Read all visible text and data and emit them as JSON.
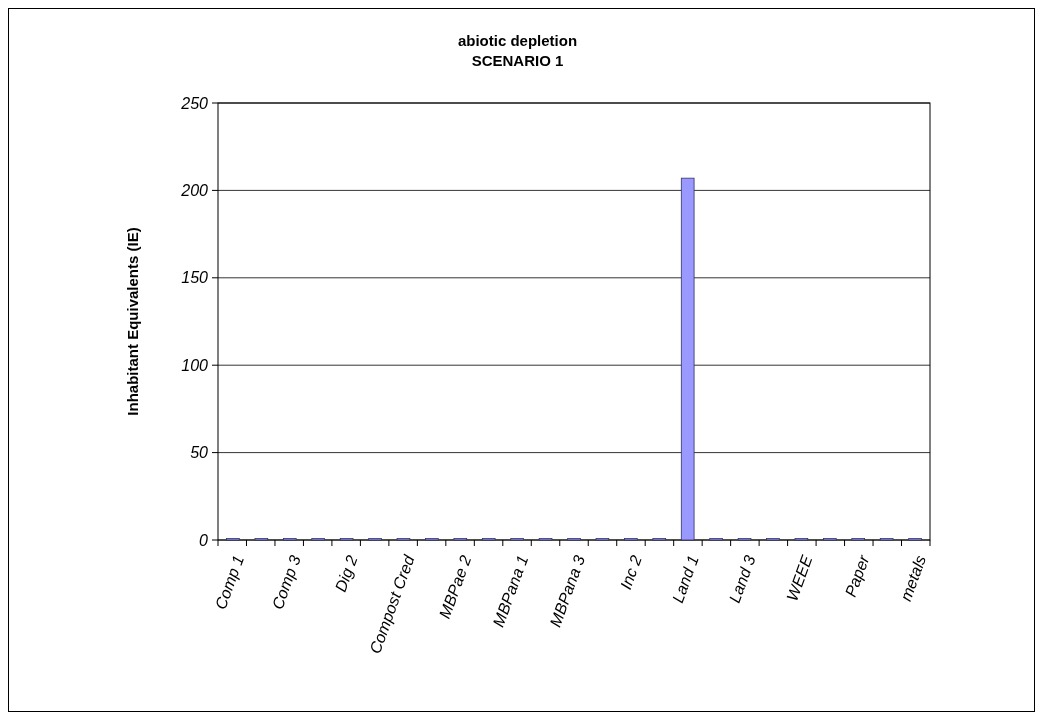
{
  "chart_data": {
    "type": "bar",
    "title": "abiotic depletion",
    "subtitle": "SCENARIO 1",
    "ylabel": "Inhabitant Equivalents (IE)",
    "categories": [
      "Comp 1",
      null,
      "Comp 3",
      null,
      "Dig 2",
      null,
      "Compost Cred",
      null,
      "MBPae 2",
      null,
      "MBPana 1",
      null,
      "MBPana 3",
      null,
      "Inc 2",
      null,
      "Land 1",
      null,
      "Land 3",
      null,
      "WEEE",
      null,
      "Paper",
      null,
      "metals"
    ],
    "values": [
      0,
      0,
      0,
      0,
      0,
      0,
      0,
      0,
      0,
      0,
      0,
      0,
      0,
      0,
      0,
      0,
      207,
      0,
      0,
      0,
      0,
      0,
      0,
      0,
      0
    ],
    "color": "#9999ff",
    "ylim": [
      0,
      250
    ],
    "yticks": [
      0,
      50,
      100,
      150,
      200,
      250
    ],
    "grid": "y"
  }
}
